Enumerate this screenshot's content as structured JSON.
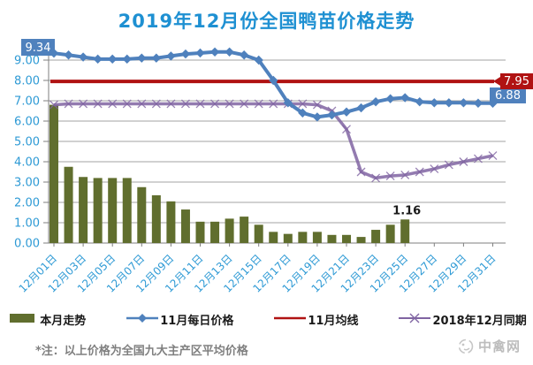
{
  "title": "2019年12月份全国鸭苗价格走势",
  "footnote": "*注：以上价格为全国九大主产区平均价格",
  "watermark": "中禽网",
  "colors": {
    "title": "#1e90d2",
    "axis_label": "#2e9ad5",
    "grid": "#a3a3a3",
    "axis_line": "#7f7f7f",
    "bar": "#606e2e",
    "nov_daily": "#4f81bd",
    "nov_average": "#b01212",
    "dec_2018": "#8064a2",
    "annotation_text": "#ffffff",
    "bar_label": "#1a1a1a"
  },
  "legend": [
    {
      "label": "本月走势",
      "type": "bar",
      "color": "#606e2e"
    },
    {
      "label": "11月每日价格",
      "type": "line-diamond",
      "color": "#4f81bd"
    },
    {
      "label": "11月均线",
      "type": "line",
      "color": "#b01212"
    },
    {
      "label": "2018年12月同期",
      "type": "line-x",
      "color": "#8064a2"
    }
  ],
  "chart_data": {
    "type": "bar",
    "subtype": "combo bar + lines",
    "x": [
      1,
      2,
      3,
      4,
      5,
      6,
      7,
      8,
      9,
      10,
      11,
      12,
      13,
      14,
      15,
      16,
      17,
      18,
      19,
      20,
      21,
      22,
      23,
      24,
      25,
      26,
      27,
      28,
      29,
      30,
      31
    ],
    "x_tick_labels": [
      "12月01日",
      "12月03日",
      "12月05日",
      "12月07日",
      "12月09日",
      "12月11日",
      "12月13日",
      "12月15日",
      "12月17日",
      "12月19日",
      "12月21日",
      "12月23日",
      "12月25日",
      "12月27日",
      "12月29日",
      "12月31日"
    ],
    "y_ticks": [
      "0.00",
      "1.00",
      "2.00",
      "3.00",
      "4.00",
      "5.00",
      "6.00",
      "7.00",
      "8.00",
      "9.00"
    ],
    "ylim": [
      0,
      9
    ],
    "grid": true,
    "legend_position": "bottom",
    "series": [
      {
        "name": "本月走势",
        "type": "bar",
        "color": "#606e2e",
        "values": [
          6.8,
          3.75,
          3.25,
          3.2,
          3.2,
          3.2,
          2.75,
          2.35,
          2.05,
          1.65,
          1.05,
          1.05,
          1.2,
          1.3,
          0.9,
          0.55,
          0.45,
          0.55,
          0.55,
          0.4,
          0.4,
          0.3,
          0.65,
          0.9,
          1.16,
          null,
          null,
          null,
          null,
          null,
          null
        ]
      },
      {
        "name": "11月每日价格",
        "type": "line",
        "marker": "diamond",
        "color": "#4f81bd",
        "values": [
          9.34,
          9.25,
          9.15,
          9.05,
          9.05,
          9.05,
          9.1,
          9.1,
          9.2,
          9.3,
          9.35,
          9.4,
          9.4,
          9.25,
          9.0,
          8.0,
          6.9,
          6.4,
          6.2,
          6.3,
          6.45,
          6.65,
          6.95,
          7.1,
          7.15,
          6.95,
          6.9,
          6.9,
          6.9,
          6.88,
          6.88
        ]
      },
      {
        "name": "11月均线",
        "type": "hline",
        "color": "#b01212",
        "value": 7.95
      },
      {
        "name": "2018年12月同期",
        "type": "line",
        "marker": "x",
        "color": "#8064a2",
        "values": [
          6.8,
          6.85,
          6.85,
          6.85,
          6.85,
          6.85,
          6.85,
          6.85,
          6.85,
          6.85,
          6.85,
          6.85,
          6.85,
          6.85,
          6.85,
          6.85,
          6.85,
          6.85,
          6.8,
          6.5,
          5.6,
          3.5,
          3.2,
          3.3,
          3.35,
          3.5,
          3.65,
          3.85,
          4.0,
          4.15,
          4.3
        ]
      }
    ],
    "annotations": [
      {
        "text": "9.34",
        "target": "11月每日价格 day 1",
        "style": "blue-box"
      },
      {
        "text": "6.88",
        "target": "11月每日价格 day 31",
        "style": "blue-box"
      },
      {
        "text": "7.95",
        "target": "11月均线",
        "style": "red-box"
      },
      {
        "text": "1.16",
        "target": "本月走势 day 25",
        "style": "bold-text"
      }
    ]
  }
}
